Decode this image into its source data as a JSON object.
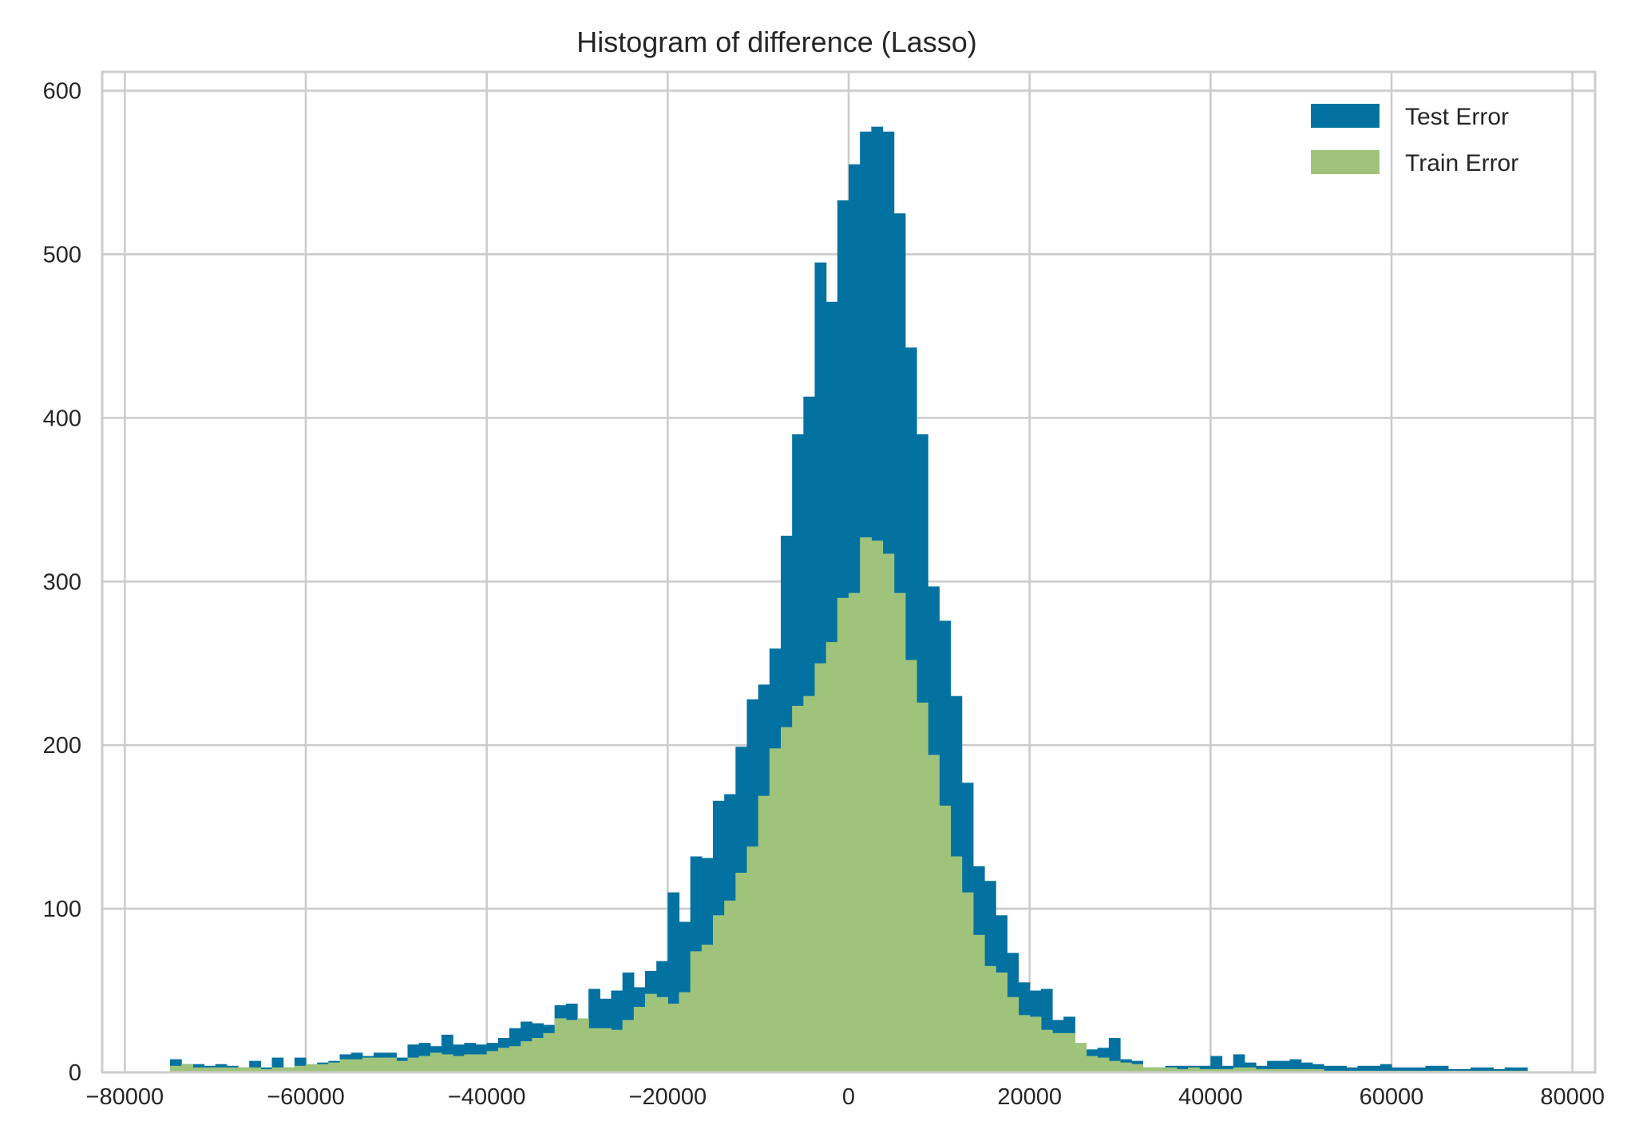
{
  "chart_data": {
    "type": "bar",
    "subtype": "histogram",
    "title": "Histogram of difference (Lasso)",
    "xlabel": "",
    "ylabel": "",
    "xlim": [
      -80000,
      80000
    ],
    "ylim": [
      0,
      600
    ],
    "x_ticks": [
      -80000,
      -60000,
      -40000,
      -20000,
      0,
      20000,
      40000,
      60000,
      80000
    ],
    "x_tick_labels": [
      "−80000",
      "−60000",
      "−40000",
      "−20000",
      "0",
      "20000",
      "40000",
      "60000",
      "80000"
    ],
    "y_ticks": [
      0,
      100,
      200,
      300,
      400,
      500,
      600
    ],
    "y_tick_labels": [
      "0",
      "100",
      "200",
      "300",
      "400",
      "500",
      "600"
    ],
    "grid": true,
    "legend_position": "top-right",
    "bin_start": -75000,
    "bin_width": 1250,
    "series": [
      {
        "name": "Test Error",
        "color": "#0372a1",
        "values": [
          8,
          5,
          5,
          4,
          5,
          4,
          3,
          7,
          3,
          9,
          3,
          9,
          4,
          6,
          7,
          11,
          12,
          10,
          12,
          12,
          9,
          17,
          18,
          16,
          23,
          17,
          18,
          17,
          18,
          21,
          27,
          31,
          30,
          29,
          41,
          42,
          32,
          51,
          45,
          50,
          61,
          52,
          62,
          68,
          110,
          92,
          132,
          131,
          166,
          170,
          199,
          228,
          237,
          259,
          328,
          390,
          413,
          495,
          471,
          533,
          555,
          575,
          578,
          575,
          525,
          443,
          390,
          297,
          276,
          230,
          177,
          126,
          117,
          96,
          73,
          55,
          50,
          51,
          32,
          34,
          14,
          14,
          15,
          21,
          8,
          7,
          3,
          3,
          4,
          4,
          4,
          4,
          10,
          4,
          11,
          6,
          4,
          7,
          7,
          8,
          6,
          5,
          4,
          4,
          3,
          4,
          4,
          5,
          3,
          3,
          3,
          4,
          4,
          2,
          2,
          3,
          3,
          2,
          3,
          3
        ]
      },
      {
        "name": "Train Error",
        "color": "#9fc37a",
        "values": [
          4,
          5,
          3,
          3,
          3,
          3,
          3,
          3,
          2,
          3,
          3,
          4,
          5,
          5,
          6,
          8,
          8,
          9,
          9,
          9,
          7,
          9,
          10,
          12,
          11,
          10,
          11,
          11,
          13,
          15,
          16,
          19,
          21,
          24,
          33,
          32,
          33,
          27,
          27,
          26,
          32,
          40,
          48,
          46,
          42,
          49,
          74,
          78,
          96,
          105,
          122,
          138,
          169,
          198,
          211,
          224,
          230,
          250,
          263,
          290,
          293,
          327,
          325,
          317,
          293,
          252,
          226,
          194,
          163,
          132,
          110,
          84,
          65,
          61,
          46,
          35,
          34,
          26,
          24,
          24,
          18,
          10,
          9,
          7,
          6,
          5,
          3,
          3,
          3,
          2,
          3,
          2,
          2,
          2,
          3,
          3,
          2,
          2,
          2,
          2,
          2,
          2,
          1,
          1,
          1,
          1,
          1,
          1,
          1,
          1,
          1,
          1,
          1,
          1,
          1,
          1,
          1,
          1,
          1,
          1
        ]
      }
    ]
  }
}
